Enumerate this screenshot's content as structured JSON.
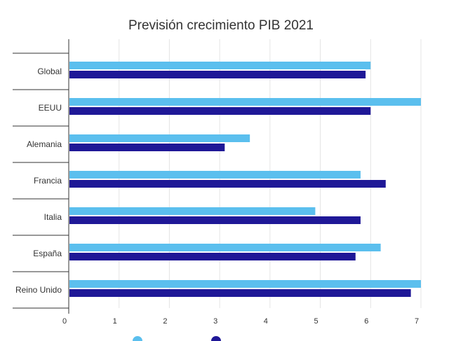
{
  "chart_data": {
    "type": "bar",
    "orientation": "horizontal",
    "title": "Previsión crecimiento PIB 2021",
    "xlabel": "",
    "ylabel": "",
    "categories": [
      "Global",
      "EEUU",
      "Alemania",
      "Francia",
      "Italia",
      "España",
      "Reino Unido"
    ],
    "series": [
      {
        "values": [
          6.0,
          7.0,
          3.6,
          5.8,
          4.9,
          6.2,
          7.0
        ],
        "color": "#5bbfee"
      },
      {
        "values": [
          5.9,
          6.0,
          3.1,
          6.3,
          5.8,
          5.7,
          6.8
        ],
        "color": "#1f1897"
      }
    ],
    "xlim": [
      0,
      7
    ],
    "xticks": [
      "0",
      "1",
      "2",
      "3",
      "4",
      "5",
      "6",
      "7"
    ],
    "grid": true,
    "legend": "bottom"
  }
}
